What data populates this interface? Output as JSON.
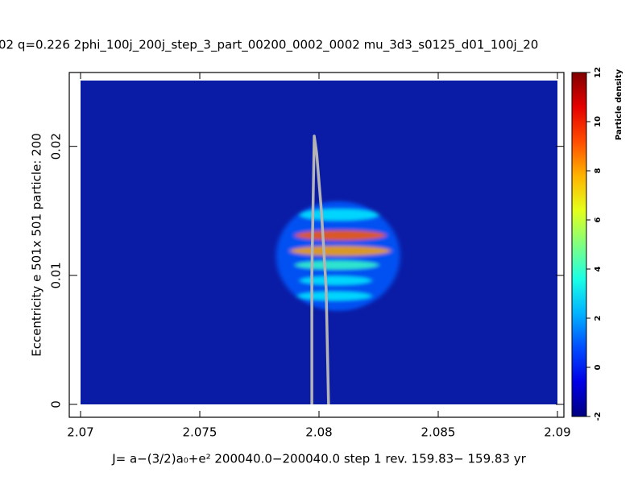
{
  "chart_data": {
    "type": "density",
    "title": "02 q=0.226  2phi_100j_200j_step_3_part_00200_0002_0002   mu_3d3_s0125_d01_100j_20",
    "xlabel": "J= a−(3/2)a₀+e² 200040.0−200040.0 step  1 rev. 159.83− 159.83 yr",
    "ylabel": "Eccentricity e   501x 501 particle:  200",
    "xlim": [
      2.07,
      2.09
    ],
    "ylim": [
      0,
      0.0251
    ],
    "xticks": [
      2.07,
      2.075,
      2.08,
      2.085,
      2.09
    ],
    "yticks": [
      0,
      0.01,
      0.02
    ],
    "background_color": "#0a1ca6",
    "colorbar": {
      "label": "Particle density",
      "clim": [
        -2,
        12
      ],
      "ticks": [
        -2,
        0,
        2,
        4,
        6,
        8,
        10,
        12
      ]
    },
    "bands": [
      {
        "e": 0.0115,
        "j_from": 2.0782,
        "j_to": 2.0834,
        "height": 0.0085,
        "density": 1
      },
      {
        "e": 0.0147,
        "j_from": 2.0792,
        "j_to": 2.0825,
        "height": 0.0009,
        "density": 3
      },
      {
        "e": 0.0131,
        "j_from": 2.079,
        "j_to": 2.0828,
        "height": 0.0008,
        "density": 9
      },
      {
        "e": 0.0119,
        "j_from": 2.0788,
        "j_to": 2.083,
        "height": 0.0008,
        "density": 8
      },
      {
        "e": 0.0108,
        "j_from": 2.079,
        "j_to": 2.0825,
        "height": 0.0007,
        "density": 4
      },
      {
        "e": 0.0096,
        "j_from": 2.0792,
        "j_to": 2.0822,
        "height": 0.0007,
        "density": 3
      },
      {
        "e": 0.0084,
        "j_from": 2.0791,
        "j_to": 2.0822,
        "height": 0.0007,
        "density": 3
      }
    ],
    "curve": {
      "color": "#b4b4b4",
      "x": [
        2.0797,
        2.0797,
        2.0798,
        2.0799,
        2.0801,
        2.0803,
        2.0804
      ],
      "y": [
        0,
        0.01,
        0.0208,
        0.0195,
        0.015,
        0.009,
        0
      ]
    }
  }
}
